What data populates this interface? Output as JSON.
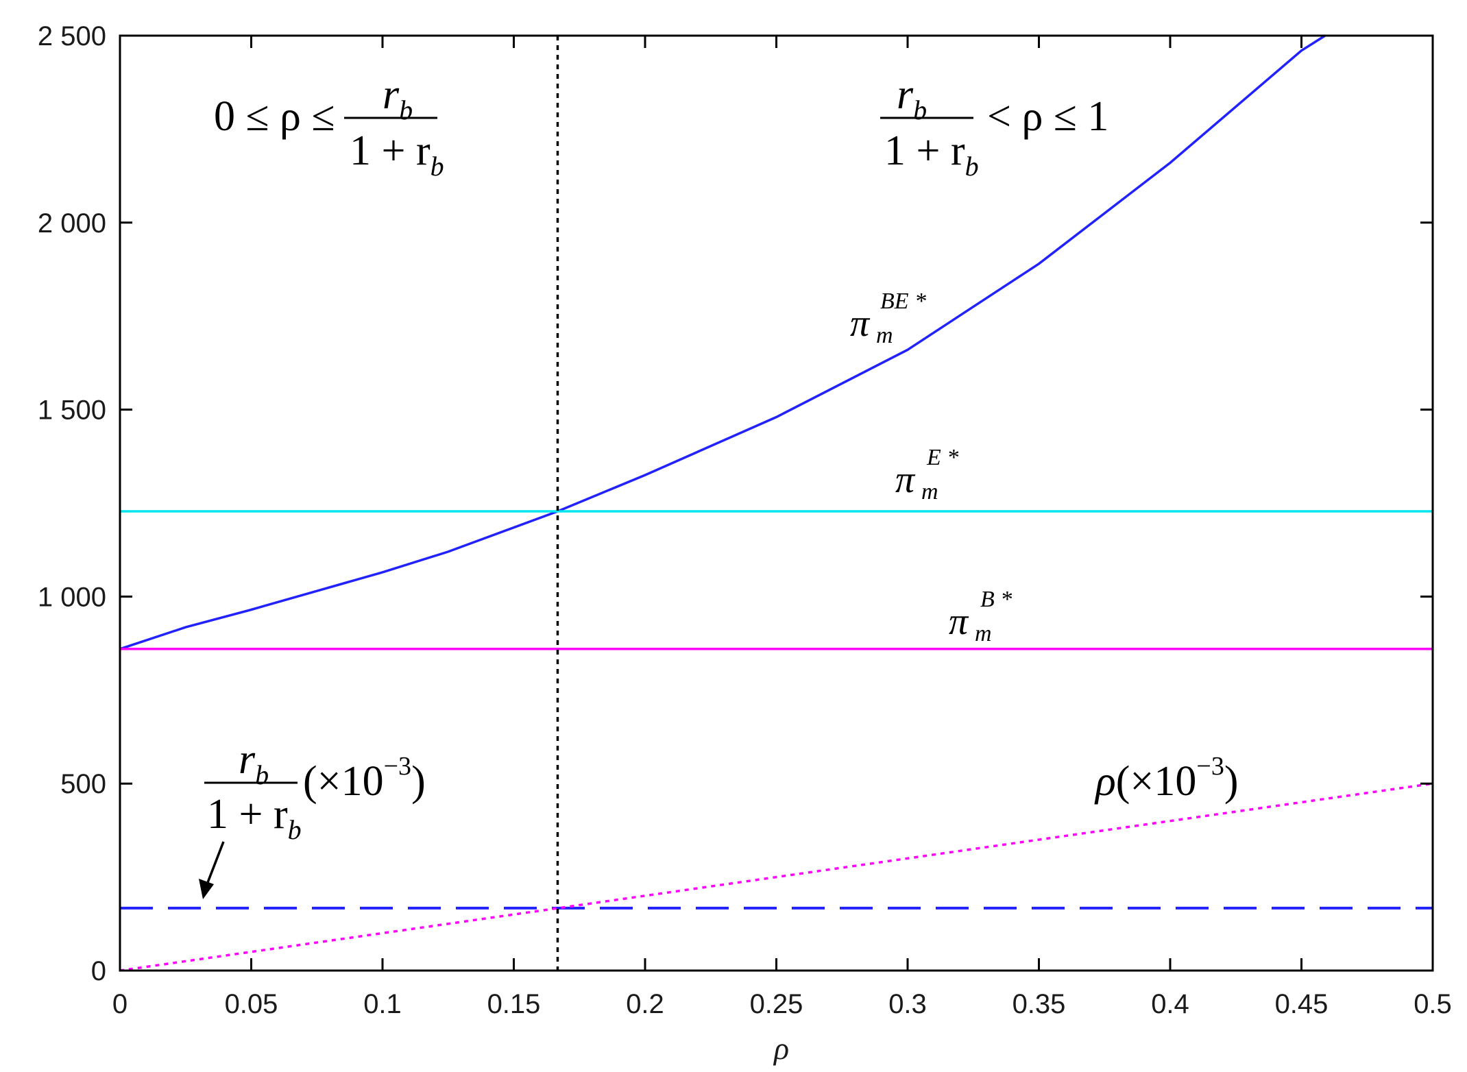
{
  "chart_data": {
    "type": "line",
    "xlabel": "ρ",
    "ylabel": "",
    "xlim": [
      0,
      0.5
    ],
    "ylim": [
      0,
      2500
    ],
    "xticks": [
      0,
      0.05,
      0.1,
      0.15,
      0.2,
      0.25,
      0.3,
      0.35,
      0.4,
      0.45,
      0.5
    ],
    "xtick_labels": [
      "0",
      "0.05",
      "0.1",
      "0.15",
      "0.2",
      "0.25",
      "0.3",
      "0.35",
      "0.4",
      "0.45",
      "0.5"
    ],
    "yticks": [
      0,
      500,
      1000,
      1500,
      2000,
      2500
    ],
    "ytick_labels": [
      "0",
      "500",
      "1 000",
      "1 500",
      "2 000",
      "2 500"
    ],
    "grid": false,
    "threshold_x": 0.1667,
    "series": [
      {
        "name": "π_m^BE*",
        "color": "#2222ff",
        "style": "solid",
        "x": [
          0,
          0.025,
          0.05,
          0.075,
          0.1,
          0.125,
          0.1667,
          0.2,
          0.25,
          0.3,
          0.35,
          0.4,
          0.45,
          0.459
        ],
        "y": [
          860,
          918,
          965,
          1015,
          1065,
          1120,
          1228,
          1325,
          1480,
          1660,
          1890,
          2160,
          2460,
          2500
        ]
      },
      {
        "name": "π_m^E*",
        "color": "#00e5ee",
        "style": "solid",
        "x": [
          0,
          0.5
        ],
        "y": [
          1228,
          1228
        ]
      },
      {
        "name": "π_m^B*",
        "color": "#ff00ff",
        "style": "solid",
        "x": [
          0,
          0.5
        ],
        "y": [
          860,
          860
        ]
      },
      {
        "name": "r_b/(1+r_b) (×10^-3)",
        "color": "#2222ff",
        "style": "dashed",
        "x": [
          0,
          0.5
        ],
        "y": [
          167,
          167
        ]
      },
      {
        "name": "ρ(×10^-3)",
        "color": "#ff00ff",
        "style": "dotted",
        "x": [
          0,
          0.5
        ],
        "y": [
          0,
          500
        ]
      }
    ],
    "annotations": {
      "region_left": {
        "lhs": "0 ≤ ρ ≤",
        "num": "r",
        "num_sub": "b",
        "den": "1 + r",
        "den_sub": "b"
      },
      "region_right": {
        "num": "r",
        "num_sub": "b",
        "den": "1 + r",
        "den_sub": "b",
        "rhs": "< ρ ≤ 1"
      },
      "label_be": {
        "base": "π",
        "sub": "m",
        "sup": "BE *"
      },
      "label_e": {
        "base": "π",
        "sub": "m",
        "sup": "E *"
      },
      "label_b": {
        "base": "π",
        "sub": "m",
        "sup": "B *"
      },
      "label_rb": {
        "num": "r",
        "num_sub": "b",
        "den": "1 + r",
        "den_sub": "b",
        "tail": "(×10",
        "tail_sup": "−3",
        "tail_close": ")"
      },
      "label_rho": {
        "base": "ρ",
        "tail": "(×10",
        "tail_sup": "−3",
        "tail_close": ")"
      }
    }
  }
}
